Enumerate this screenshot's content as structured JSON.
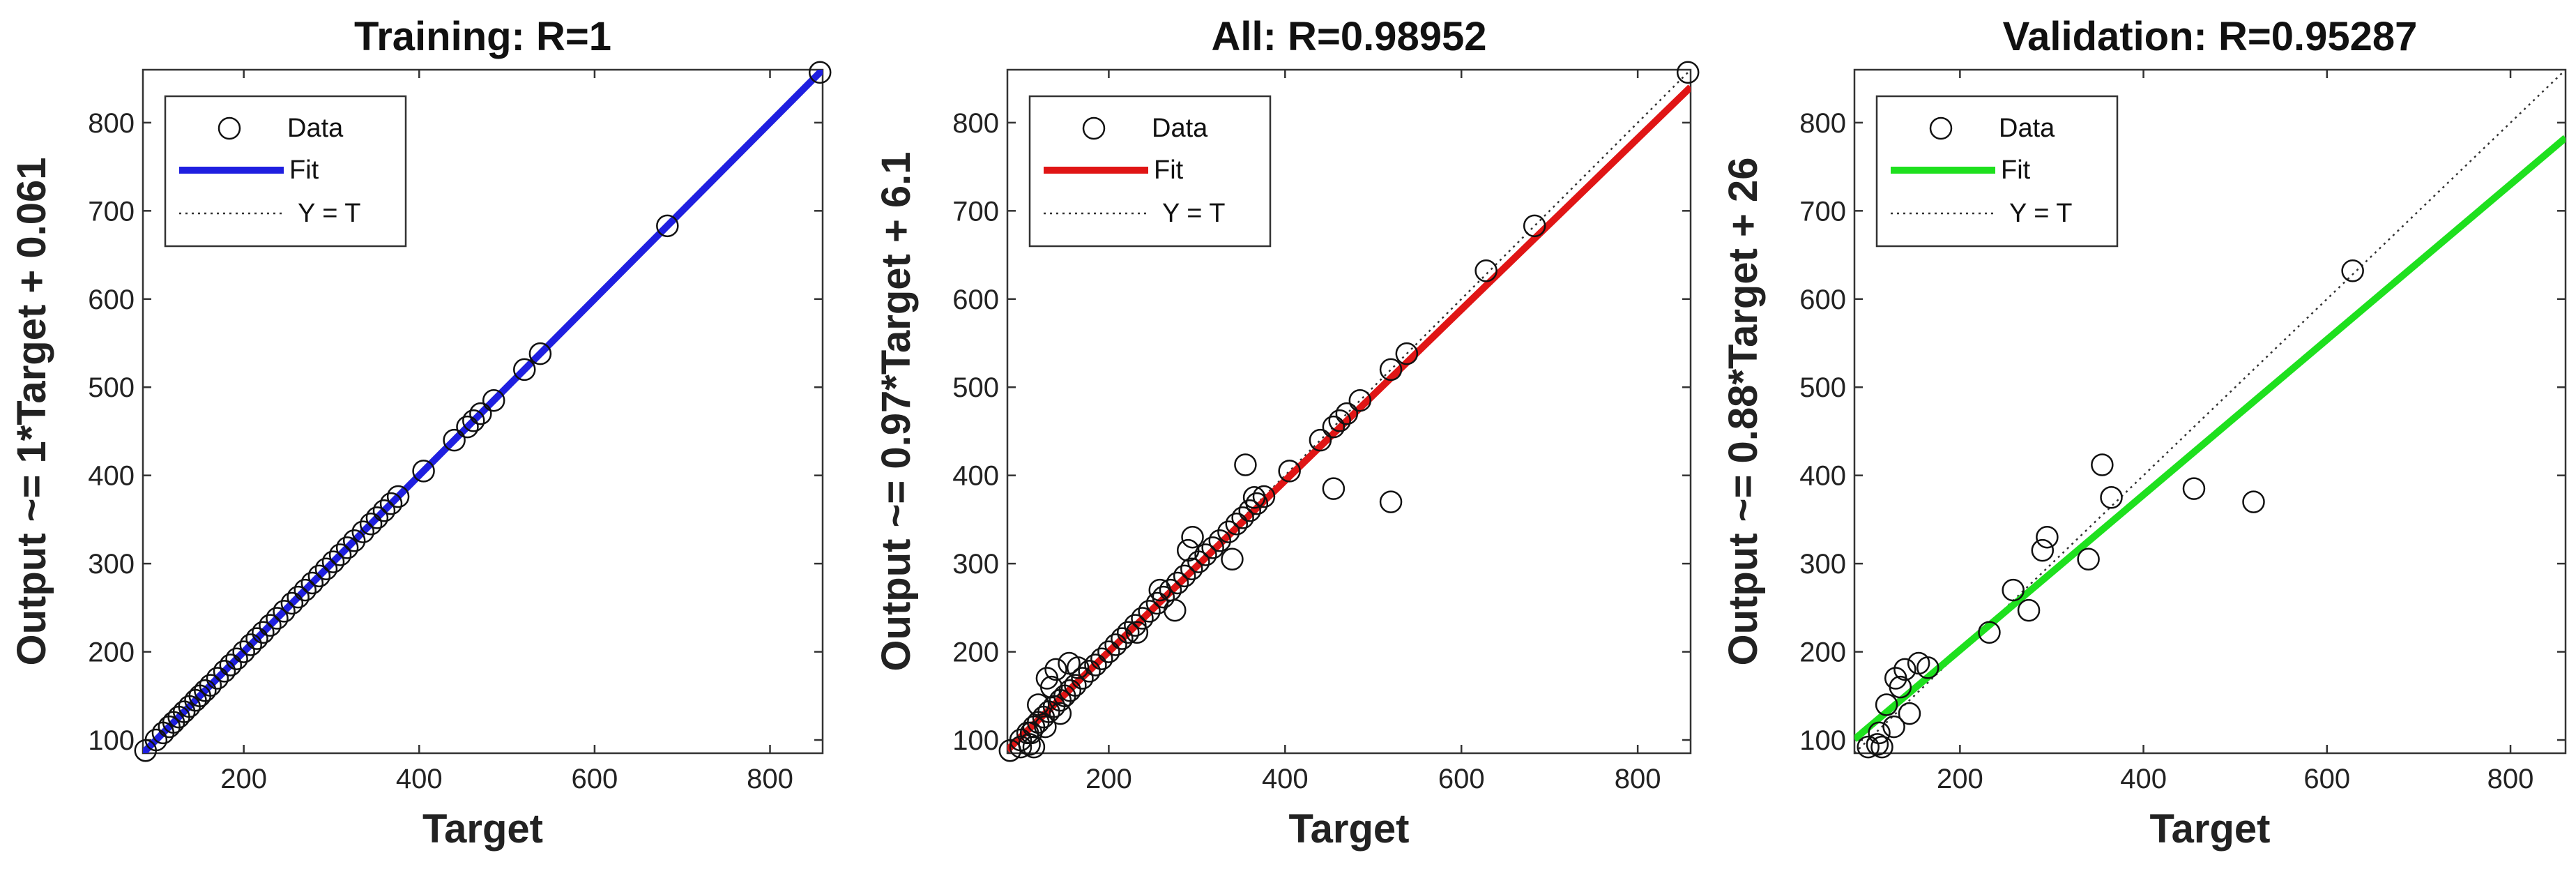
{
  "chart_data": [
    {
      "type": "scatter",
      "title": "Training: R=1",
      "xlabel": "Target",
      "ylabel": "Output ~= 1*Target + 0.061",
      "xlim": [
        85,
        860
      ],
      "ylim": [
        85,
        860
      ],
      "xticks": [
        200,
        400,
        600,
        800
      ],
      "yticks": [
        100,
        200,
        300,
        400,
        500,
        600,
        700,
        800
      ],
      "grid": false,
      "legend_position": "top-left",
      "legend": [
        "Data",
        "Fit",
        "Y = T"
      ],
      "fit": {
        "slope": 1,
        "intercept": 0.061,
        "color": "#1f1fe0"
      },
      "points": [
        [
          88,
          88
        ],
        [
          100,
          100
        ],
        [
          108,
          108
        ],
        [
          115,
          115
        ],
        [
          120,
          120
        ],
        [
          126,
          126
        ],
        [
          132,
          132
        ],
        [
          138,
          138
        ],
        [
          145,
          145
        ],
        [
          150,
          150
        ],
        [
          156,
          156
        ],
        [
          162,
          162
        ],
        [
          170,
          170
        ],
        [
          178,
          178
        ],
        [
          185,
          185
        ],
        [
          192,
          192
        ],
        [
          200,
          200
        ],
        [
          208,
          208
        ],
        [
          215,
          215
        ],
        [
          222,
          222
        ],
        [
          230,
          230
        ],
        [
          238,
          238
        ],
        [
          246,
          246
        ],
        [
          255,
          255
        ],
        [
          262,
          262
        ],
        [
          270,
          270
        ],
        [
          278,
          278
        ],
        [
          286,
          286
        ],
        [
          294,
          294
        ],
        [
          302,
          302
        ],
        [
          310,
          310
        ],
        [
          318,
          318
        ],
        [
          326,
          326
        ],
        [
          336,
          336
        ],
        [
          345,
          345
        ],
        [
          352,
          352
        ],
        [
          360,
          360
        ],
        [
          368,
          368
        ],
        [
          376,
          376
        ],
        [
          405,
          405
        ],
        [
          440,
          440
        ],
        [
          455,
          455
        ],
        [
          462,
          462
        ],
        [
          470,
          470
        ],
        [
          485,
          485
        ],
        [
          520,
          520
        ],
        [
          538,
          538
        ],
        [
          683,
          683
        ],
        [
          857,
          857
        ]
      ]
    },
    {
      "type": "scatter",
      "title": "All: R=0.98952",
      "xlabel": "Target",
      "ylabel": "Output ~= 0.97*Target + 6.1",
      "xlim": [
        85,
        860
      ],
      "ylim": [
        85,
        860
      ],
      "xticks": [
        200,
        400,
        600,
        800
      ],
      "yticks": [
        100,
        200,
        300,
        400,
        500,
        600,
        700,
        800
      ],
      "grid": false,
      "legend_position": "top-left",
      "legend": [
        "Data",
        "Fit",
        "Y = T"
      ],
      "fit": {
        "slope": 0.97,
        "intercept": 6.1,
        "color": "#e01515"
      },
      "points": [
        [
          88,
          88
        ],
        [
          100,
          100
        ],
        [
          108,
          108
        ],
        [
          115,
          115
        ],
        [
          120,
          120
        ],
        [
          126,
          126
        ],
        [
          132,
          132
        ],
        [
          138,
          138
        ],
        [
          145,
          145
        ],
        [
          150,
          150
        ],
        [
          156,
          156
        ],
        [
          162,
          162
        ],
        [
          170,
          170
        ],
        [
          178,
          178
        ],
        [
          185,
          185
        ],
        [
          192,
          192
        ],
        [
          200,
          200
        ],
        [
          208,
          208
        ],
        [
          215,
          215
        ],
        [
          222,
          222
        ],
        [
          230,
          230
        ],
        [
          238,
          238
        ],
        [
          246,
          246
        ],
        [
          255,
          255
        ],
        [
          262,
          262
        ],
        [
          270,
          270
        ],
        [
          278,
          278
        ],
        [
          286,
          286
        ],
        [
          294,
          294
        ],
        [
          302,
          302
        ],
        [
          310,
          310
        ],
        [
          318,
          318
        ],
        [
          326,
          326
        ],
        [
          336,
          336
        ],
        [
          345,
          345
        ],
        [
          352,
          352
        ],
        [
          360,
          360
        ],
        [
          368,
          368
        ],
        [
          376,
          376
        ],
        [
          405,
          405
        ],
        [
          440,
          440
        ],
        [
          455,
          455
        ],
        [
          462,
          462
        ],
        [
          470,
          470
        ],
        [
          485,
          485
        ],
        [
          520,
          520
        ],
        [
          538,
          538
        ],
        [
          683,
          683
        ],
        [
          857,
          857
        ],
        [
          100,
          92
        ],
        [
          110,
          95
        ],
        [
          112,
          108
        ],
        [
          115,
          92
        ],
        [
          120,
          140
        ],
        [
          128,
          115
        ],
        [
          130,
          170
        ],
        [
          135,
          160
        ],
        [
          140,
          180
        ],
        [
          145,
          130
        ],
        [
          155,
          187
        ],
        [
          165,
          182
        ],
        [
          232,
          222
        ],
        [
          258,
          270
        ],
        [
          275,
          247
        ],
        [
          290,
          315
        ],
        [
          295,
          330
        ],
        [
          340,
          305
        ],
        [
          355,
          412
        ],
        [
          365,
          375
        ],
        [
          455,
          385
        ],
        [
          520,
          370
        ],
        [
          628,
          632
        ]
      ]
    },
    {
      "type": "scatter",
      "title": "Validation: R=0.95287",
      "xlabel": "Target",
      "ylabel": "Output ~= 0.88*Target + 26",
      "xlim": [
        85,
        860
      ],
      "ylim": [
        85,
        860
      ],
      "xticks": [
        200,
        400,
        600,
        800
      ],
      "yticks": [
        100,
        200,
        300,
        400,
        500,
        600,
        700,
        800
      ],
      "grid": false,
      "legend_position": "top-left",
      "legend": [
        "Data",
        "Fit",
        "Y = T"
      ],
      "fit": {
        "slope": 0.88,
        "intercept": 26,
        "color": "#1ee01e"
      },
      "points": [
        [
          100,
          92
        ],
        [
          110,
          95
        ],
        [
          112,
          108
        ],
        [
          115,
          92
        ],
        [
          120,
          140
        ],
        [
          128,
          115
        ],
        [
          130,
          170
        ],
        [
          135,
          160
        ],
        [
          140,
          180
        ],
        [
          145,
          130
        ],
        [
          155,
          187
        ],
        [
          165,
          182
        ],
        [
          232,
          222
        ],
        [
          258,
          270
        ],
        [
          275,
          247
        ],
        [
          290,
          315
        ],
        [
          295,
          330
        ],
        [
          340,
          305
        ],
        [
          355,
          412
        ],
        [
          365,
          375
        ],
        [
          455,
          385
        ],
        [
          520,
          370
        ],
        [
          628,
          632
        ]
      ]
    }
  ]
}
